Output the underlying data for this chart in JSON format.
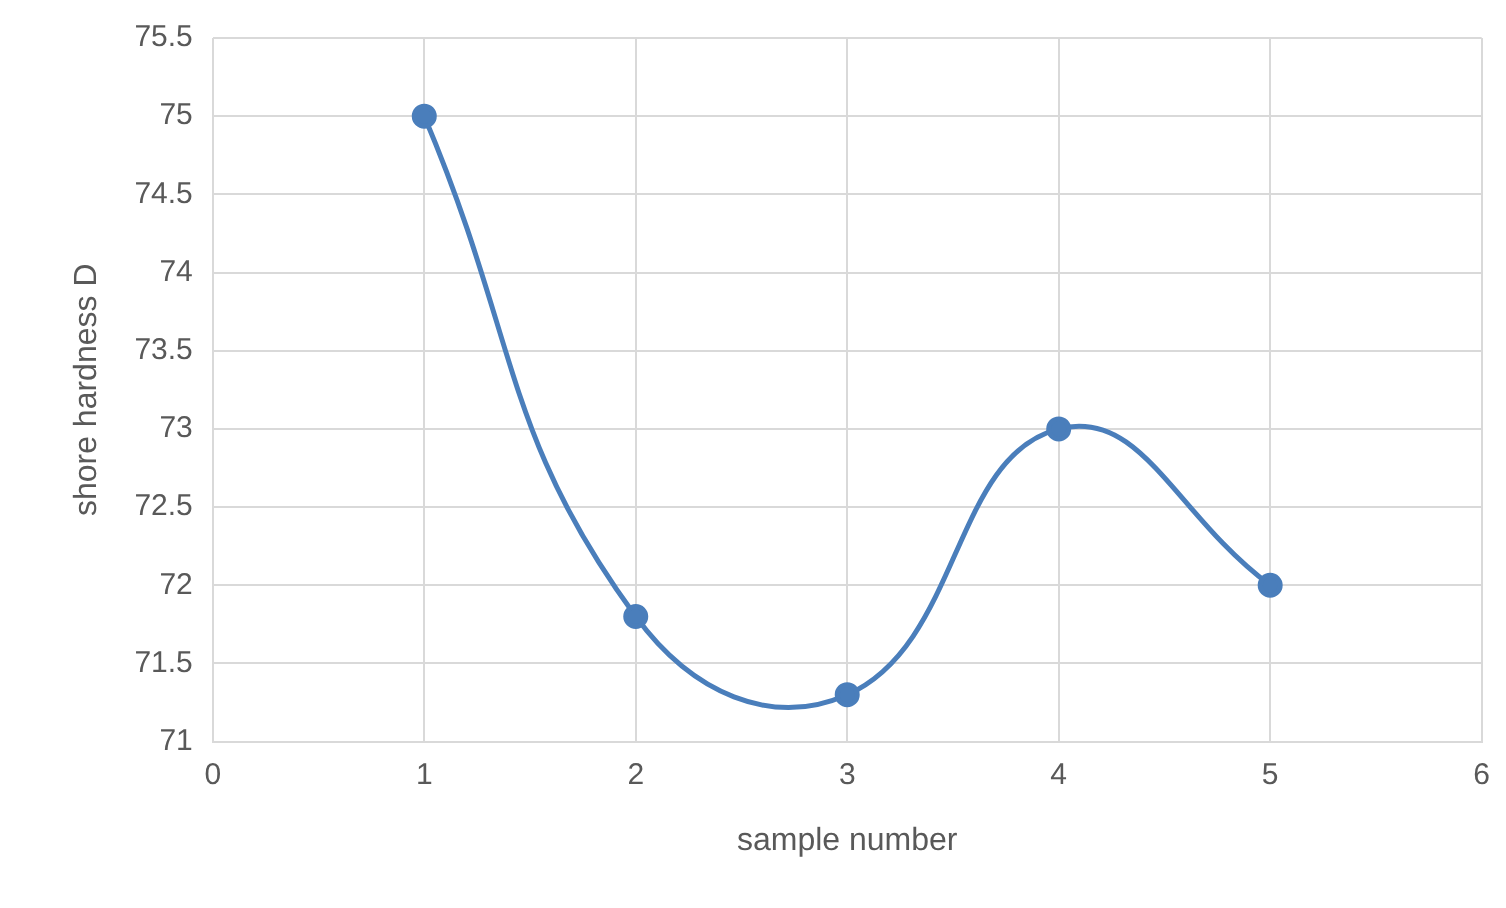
{
  "chart_data": {
    "type": "line",
    "xlabel": "sample number",
    "ylabel": "shore hardness D",
    "x": [
      1,
      2,
      3,
      4,
      5
    ],
    "series": [
      {
        "color": "#4a7ebb",
        "values": [
          75,
          71.8,
          71.3,
          73,
          72
        ]
      }
    ],
    "xlim": [
      0,
      6
    ],
    "xticks": [
      0,
      1,
      2,
      3,
      4,
      5,
      6
    ],
    "ylim": [
      71,
      75.5
    ],
    "yticks": [
      71,
      71.5,
      72,
      72.5,
      73,
      73.5,
      74,
      74.5,
      75,
      75.5
    ],
    "grid": true,
    "legend": false,
    "marker": "circle",
    "line_style": "solid"
  }
}
